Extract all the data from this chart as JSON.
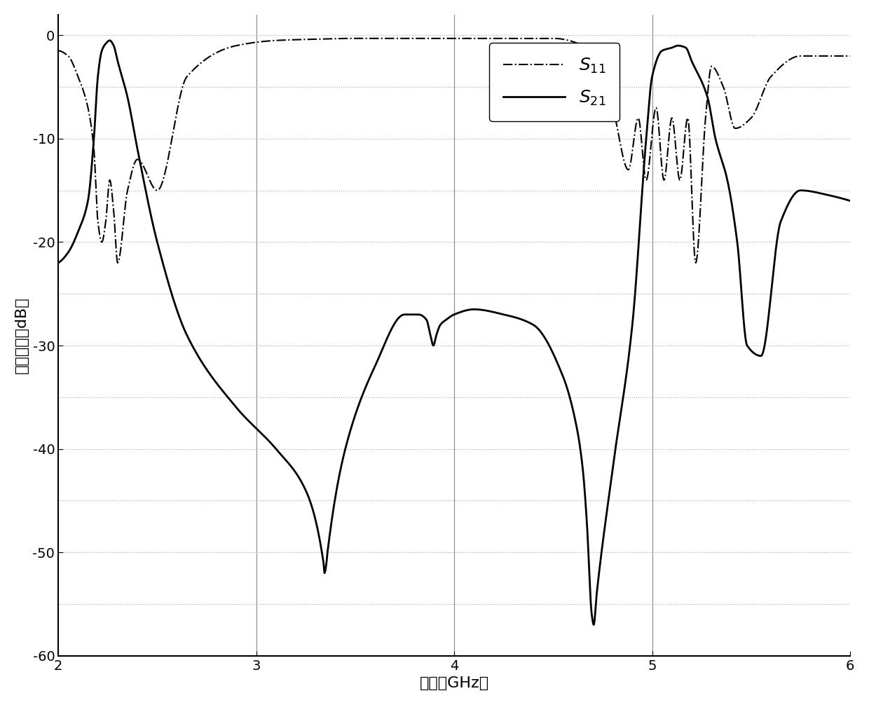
{
  "title": "",
  "xlabel": "频率（GHz）",
  "ylabel": "散射参数（dB）",
  "xlim": [
    2,
    6
  ],
  "ylim": [
    -60,
    2
  ],
  "yticks": [
    0,
    -10,
    -20,
    -30,
    -40,
    -50,
    -60
  ],
  "xticks": [
    2,
    3,
    4,
    5,
    6
  ],
  "vlines": [
    3,
    4,
    5
  ],
  "grid_color": "#aaaaaa",
  "background_color": "#ffffff",
  "line_color": "#000000",
  "s21_knots_f": [
    2.0,
    2.05,
    2.1,
    2.15,
    2.18,
    2.2,
    2.22,
    2.24,
    2.26,
    2.28,
    2.3,
    2.35,
    2.4,
    2.5,
    2.65,
    2.9,
    3.1,
    3.25,
    3.34,
    3.345,
    3.355,
    3.36,
    3.45,
    3.6,
    3.75,
    3.82,
    3.86,
    3.88,
    3.895,
    3.91,
    3.93,
    3.96,
    4.0,
    4.1,
    4.25,
    4.4,
    4.55,
    4.62,
    4.65,
    4.67,
    4.695,
    4.705,
    4.72,
    4.8,
    4.9,
    4.97,
    5.0,
    5.05,
    5.1,
    5.13,
    5.17,
    5.2,
    5.28,
    5.32,
    5.38,
    5.43,
    5.48,
    5.55,
    5.65,
    5.75,
    5.9,
    6.0
  ],
  "s21_knots_v": [
    -22,
    -21,
    -19,
    -16,
    -10,
    -4,
    -1.5,
    -0.8,
    -0.5,
    -1.0,
    -2.5,
    -6.0,
    -11,
    -20,
    -29,
    -36,
    -40,
    -44,
    -51,
    -52,
    -51,
    -50,
    -40,
    -32,
    -27,
    -27,
    -27.5,
    -29,
    -30,
    -29,
    -28,
    -27.5,
    -27,
    -26.5,
    -27,
    -28,
    -33,
    -38,
    -42,
    -47,
    -56,
    -57,
    -54,
    -42,
    -28,
    -10,
    -4,
    -1.5,
    -1.2,
    -1.0,
    -1.2,
    -2.5,
    -6,
    -10,
    -14,
    -20,
    -30,
    -31,
    -18,
    -15,
    -15.5,
    -16
  ],
  "s11_knots_f": [
    2.0,
    2.05,
    2.1,
    2.15,
    2.18,
    2.2,
    2.22,
    2.24,
    2.26,
    2.28,
    2.3,
    2.35,
    2.4,
    2.5,
    2.65,
    2.9,
    3.1,
    3.25,
    3.5,
    4.0,
    4.5,
    4.65,
    4.72,
    4.8,
    4.88,
    4.93,
    4.97,
    5.02,
    5.06,
    5.1,
    5.14,
    5.18,
    5.22,
    5.27,
    5.3,
    5.36,
    5.42,
    5.5,
    5.6,
    5.75,
    6.0
  ],
  "s11_knots_v": [
    -1.5,
    -2.0,
    -4.0,
    -7.0,
    -11,
    -18,
    -20,
    -18,
    -14,
    -17,
    -22,
    -15,
    -12,
    -15,
    -4,
    -1.0,
    -0.5,
    -0.4,
    -0.3,
    -0.3,
    -0.3,
    -1.0,
    -3.5,
    -7,
    -13,
    -8,
    -14,
    -7,
    -14,
    -8,
    -14,
    -8,
    -22,
    -8,
    -3,
    -5,
    -9,
    -8,
    -4,
    -2,
    -2
  ]
}
